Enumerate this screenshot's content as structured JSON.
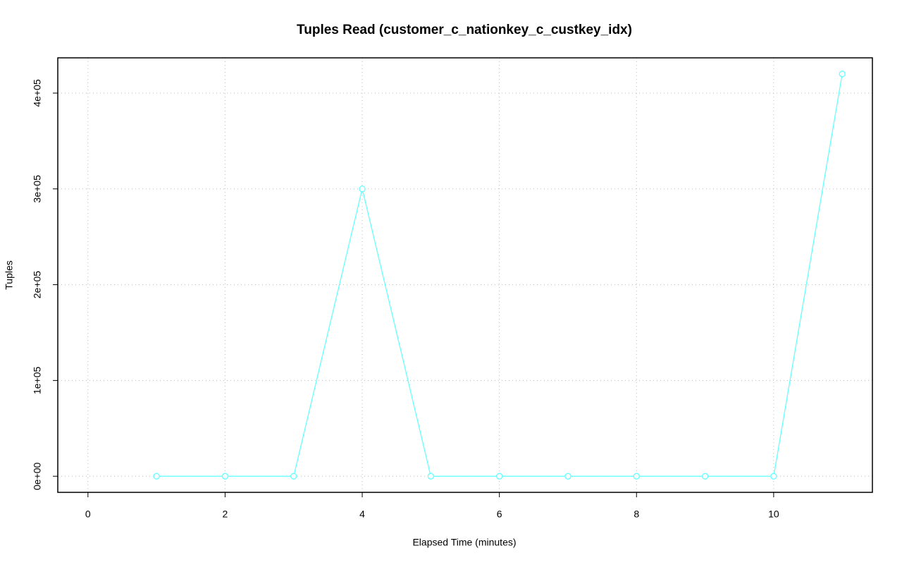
{
  "chart_data": {
    "type": "line",
    "title": "Tuples Read (customer_c_nationkey_c_custkey_idx)",
    "xlabel": "Elapsed Time (minutes)",
    "ylabel": "Tuples",
    "x": [
      1,
      2,
      3,
      4,
      5,
      6,
      7,
      8,
      9,
      10,
      11
    ],
    "series": [
      {
        "color": "#66ffff",
        "values": [
          0,
          0,
          0,
          300000,
          0,
          0,
          0,
          0,
          0,
          0,
          420000
        ]
      }
    ],
    "xlim": [
      -0.44,
      11.44
    ],
    "xticks": [
      0,
      2,
      4,
      6,
      8,
      10
    ],
    "ylim": [
      -16800,
      436800
    ],
    "yticks": [
      {
        "value": 0,
        "label": "0e+00"
      },
      {
        "value": 100000,
        "label": "1e+05"
      },
      {
        "value": 200000,
        "label": "2e+05"
      },
      {
        "value": 300000,
        "label": "3e+05"
      },
      {
        "value": 400000,
        "label": "4e+05"
      }
    ],
    "grid": true
  }
}
